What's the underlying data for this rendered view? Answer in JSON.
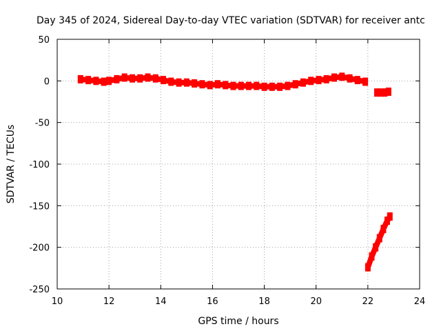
{
  "chart_data": {
    "type": "scatter",
    "title": "Day 345 of 2024, Sidereal Day-to-day VTEC variation (SDTVAR) for receiver antc",
    "xlabel": "GPS time / hours",
    "ylabel": "SDTVAR / TECUs",
    "xlim": [
      10,
      24
    ],
    "ylim": [
      -250,
      50
    ],
    "xticks": [
      10,
      12,
      14,
      16,
      18,
      20,
      22,
      24
    ],
    "yticks": [
      50,
      0,
      -50,
      -100,
      -150,
      -200,
      -250
    ],
    "grid": true,
    "legend": "none",
    "series_color": "#ff0000",
    "series": [
      {
        "name": "main",
        "x": [
          10.9,
          11.2,
          11.5,
          11.8,
          12.0,
          12.3,
          12.6,
          12.9,
          13.2,
          13.5,
          13.8,
          14.1,
          14.4,
          14.7,
          15.0,
          15.3,
          15.6,
          15.9,
          16.2,
          16.5,
          16.8,
          17.1,
          17.4,
          17.7,
          18.0,
          18.3,
          18.6,
          18.9,
          19.2,
          19.5,
          19.8,
          20.1,
          20.4,
          20.7,
          21.0,
          21.3,
          21.6,
          21.9
        ],
        "y": [
          2,
          1,
          0,
          -1,
          0,
          2,
          4,
          3,
          3,
          4,
          3,
          1,
          -1,
          -2,
          -2,
          -3,
          -4,
          -5,
          -4,
          -5,
          -6,
          -6,
          -6,
          -6,
          -7,
          -7,
          -7,
          -6,
          -4,
          -2,
          0,
          1,
          2,
          4,
          5,
          3,
          1,
          -1
        ]
      },
      {
        "name": "segment-2",
        "x": [
          22.35,
          22.5,
          22.65,
          22.8
        ],
        "y": [
          -14,
          -14,
          -14,
          -13
        ]
      },
      {
        "name": "segment-3",
        "x": [
          22.0,
          22.15,
          22.3,
          22.45,
          22.6,
          22.75,
          22.85
        ],
        "y": [
          -224,
          -211,
          -200,
          -189,
          -178,
          -168,
          -163
        ]
      }
    ]
  }
}
